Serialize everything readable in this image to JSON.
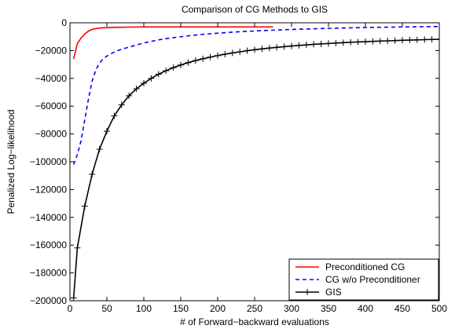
{
  "chart_data": {
    "type": "line",
    "title": "Comparison of CG Methods to GIS",
    "xlabel": "# of Forward−backward evaluations",
    "ylabel": "Penalized Log−likelihood",
    "xlim": [
      0,
      500
    ],
    "ylim": [
      -200000,
      0
    ],
    "x_ticks": [
      0,
      50,
      100,
      150,
      200,
      250,
      300,
      350,
      400,
      450,
      500
    ],
    "y_ticks": [
      0,
      -20000,
      -40000,
      -60000,
      -80000,
      -100000,
      -120000,
      -140000,
      -160000,
      -180000,
      -200000
    ],
    "x_tick_labels": [
      "0",
      "50",
      "100",
      "150",
      "200",
      "250",
      "300",
      "350",
      "400",
      "450",
      "500"
    ],
    "y_tick_labels": [
      "0",
      "−20000",
      "−40000",
      "−60000",
      "−80000",
      "−100000",
      "−120000",
      "−140000",
      "−160000",
      "−180000",
      "−200000"
    ],
    "grid": false,
    "legend_position": "bottom-right",
    "series": [
      {
        "name": "Preconditioned CG",
        "color": "#ff0000",
        "style": "solid",
        "marker": "none",
        "x": [
          5,
          10,
          15,
          20,
          25,
          30,
          35,
          40,
          50,
          60,
          70,
          80,
          100,
          130,
          170,
          220,
          275
        ],
        "y": [
          -26000,
          -15000,
          -11000,
          -8000,
          -6000,
          -4800,
          -4200,
          -3800,
          -3500,
          -3300,
          -3200,
          -3100,
          -3000,
          -3000,
          -3000,
          -3000,
          -3000
        ]
      },
      {
        "name": "CG w/o Preconditioner",
        "color": "#0000ff",
        "style": "dashed",
        "marker": "none",
        "x": [
          5,
          10,
          15,
          20,
          25,
          30,
          35,
          40,
          45,
          50,
          60,
          70,
          80,
          100,
          120,
          140,
          160,
          180,
          200,
          225,
          250,
          275,
          300,
          350,
          400,
          450,
          500
        ],
        "y": [
          -102000,
          -95000,
          -85000,
          -70000,
          -55000,
          -42000,
          -34000,
          -29000,
          -26000,
          -24000,
          -21000,
          -19000,
          -17500,
          -14500,
          -12300,
          -10700,
          -9400,
          -8300,
          -7500,
          -6600,
          -5900,
          -5300,
          -4800,
          -4000,
          -3400,
          -3000,
          -2700
        ]
      },
      {
        "name": "GIS",
        "color": "#000000",
        "style": "solid",
        "marker": "plus",
        "x": [
          5,
          10,
          20,
          30,
          40,
          50,
          60,
          70,
          80,
          90,
          100,
          110,
          120,
          130,
          140,
          150,
          160,
          170,
          180,
          190,
          200,
          210,
          220,
          230,
          240,
          250,
          260,
          270,
          280,
          290,
          300,
          310,
          320,
          330,
          340,
          350,
          360,
          370,
          380,
          390,
          400,
          410,
          420,
          430,
          440,
          450,
          460,
          470,
          480,
          490,
          500
        ],
        "y": [
          -198000,
          -162000,
          -132000,
          -109000,
          -91000,
          -78000,
          -67000,
          -59000,
          -52500,
          -47500,
          -43500,
          -40000,
          -37000,
          -34500,
          -32300,
          -30400,
          -28700,
          -27200,
          -25900,
          -24700,
          -23600,
          -22600,
          -21700,
          -20900,
          -20100,
          -19400,
          -18800,
          -18200,
          -17700,
          -17200,
          -16700,
          -16300,
          -15900,
          -15500,
          -15200,
          -14900,
          -14600,
          -14300,
          -14000,
          -13800,
          -13600,
          -13400,
          -13200,
          -13000,
          -12800,
          -12600,
          -12450,
          -12300,
          -12150,
          -12000,
          -11900
        ]
      }
    ]
  }
}
